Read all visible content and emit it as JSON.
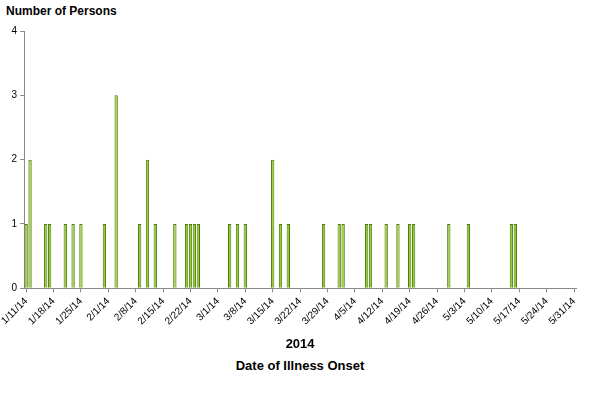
{
  "chart_data": {
    "type": "bar",
    "y_label": "Number of Persons",
    "x_label": "2014",
    "annotations": [
      "Date of Illness Onset"
    ],
    "categories": [
      "1/11/14",
      null,
      null,
      null,
      null,
      null,
      null,
      "1/18/14",
      null,
      null,
      null,
      null,
      null,
      null,
      "1/25/14",
      null,
      null,
      null,
      null,
      null,
      null,
      "2/1/14",
      null,
      null,
      null,
      null,
      null,
      null,
      "2/8/14",
      null,
      null,
      null,
      null,
      null,
      null,
      "2/15/14",
      null,
      null,
      null,
      null,
      null,
      null,
      "2/22/14",
      null,
      null,
      null,
      null,
      null,
      null,
      "3/1/14",
      null,
      null,
      null,
      null,
      null,
      null,
      "3/8/14",
      null,
      null,
      null,
      null,
      null,
      null,
      "3/15/14",
      null,
      null,
      null,
      null,
      null,
      null,
      "3/22/14",
      null,
      null,
      null,
      null,
      null,
      null,
      "3/29/14",
      null,
      null,
      null,
      null,
      null,
      null,
      "4/5/14",
      null,
      null,
      null,
      null,
      null,
      null,
      "4/12/14",
      null,
      null,
      null,
      null,
      null,
      null,
      "4/19/14",
      null,
      null,
      null,
      null,
      null,
      null,
      "4/26/14",
      null,
      null,
      null,
      null,
      null,
      null,
      "5/3/14",
      null,
      null,
      null,
      null,
      null,
      null,
      "5/10/14",
      null,
      null,
      null,
      null,
      null,
      null,
      "5/17/14",
      null,
      null,
      null,
      null,
      null,
      null,
      "5/24/14",
      null,
      null,
      null,
      null,
      null,
      null,
      "5/31/14"
    ],
    "values": [
      1,
      2,
      0,
      0,
      0,
      1,
      1,
      0,
      0,
      0,
      1,
      0,
      1,
      0,
      1,
      0,
      0,
      0,
      0,
      0,
      1,
      0,
      0,
      3,
      0,
      0,
      0,
      0,
      0,
      1,
      0,
      2,
      0,
      1,
      0,
      0,
      0,
      0,
      1,
      0,
      0,
      1,
      1,
      1,
      1,
      0,
      0,
      0,
      0,
      0,
      0,
      0,
      1,
      0,
      1,
      0,
      1,
      0,
      0,
      0,
      0,
      0,
      0,
      2,
      0,
      1,
      0,
      1,
      0,
      0,
      0,
      0,
      0,
      0,
      0,
      0,
      1,
      0,
      0,
      0,
      1,
      1,
      0,
      0,
      0,
      0,
      0,
      1,
      1,
      0,
      0,
      0,
      1,
      0,
      0,
      1,
      0,
      0,
      1,
      1,
      0,
      0,
      0,
      0,
      0,
      0,
      0,
      0,
      1,
      0,
      0,
      0,
      0,
      1,
      0,
      0,
      0,
      0,
      0,
      0,
      0,
      0,
      0,
      0,
      1,
      1,
      0,
      0,
      0,
      0,
      0,
      0,
      0,
      0,
      0,
      0,
      0,
      0,
      0,
      0,
      0
    ],
    "color": "#99cc33",
    "ylim": [
      0,
      4
    ],
    "yticks": [
      0,
      1,
      2,
      3,
      4
    ],
    "grid": false
  }
}
